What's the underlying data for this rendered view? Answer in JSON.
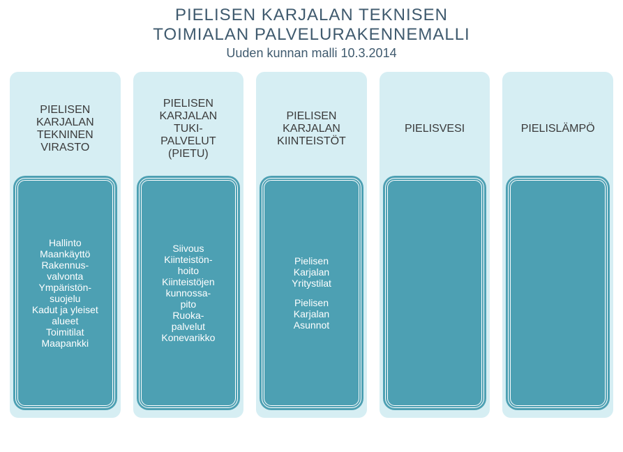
{
  "header": {
    "title_line1": "PIELISEN KARJALAN TEKNISEN",
    "title_line2": "TOIMIALAN PALVELURAKENNEMALLI",
    "subtitle": "Uuden kunnan malli 10.3.2014",
    "title_color": "#3f5a6e",
    "title_fontsize": 24,
    "subtitle_color": "#3f5a6e",
    "subtitle_fontsize": 18
  },
  "layout": {
    "column_bg": "#d6eef3",
    "column_title_color": "#3a3a3a",
    "column_title_fontsize": 16,
    "inner_bg": "#4da0b3",
    "inner_border_outer": "#4da0b3",
    "inner_border_inner": "#ffffff",
    "inner_text_color": "#ffffff",
    "inner_fontsize": 14,
    "column_radius": 12,
    "inner_radius": 14,
    "column_count": 5
  },
  "columns": [
    {
      "title": "PIELISEN\nKARJALAN\nTEKNINEN\nVIRASTO",
      "groups": [
        "Hallinto\nMaankäyttö\nRakennus-\nvalvonta\nYmpäristön-\nsuojelu\nKadut ja yleiset\nalueet\nToimitilat\nMaapankki"
      ]
    },
    {
      "title": "PIELISEN\nKARJALAN\nTUKI-\nPALVELUT\n(PIETU)",
      "groups": [
        "Siivous\nKiinteistön-\nhoito\nKiinteistöjen\nkunnossa-\npito\nRuoka-\npalvelut\nKonevarikko"
      ]
    },
    {
      "title": "PIELISEN\nKARJALAN\nKIINTEISTÖT",
      "groups": [
        "Pielisen\nKarjalan\nYritystilat",
        "Pielisen\nKarjalan\nAsunnot"
      ]
    },
    {
      "title": "PIELISVESI",
      "groups": []
    },
    {
      "title": "PIELISLÄMPÖ",
      "groups": []
    }
  ]
}
